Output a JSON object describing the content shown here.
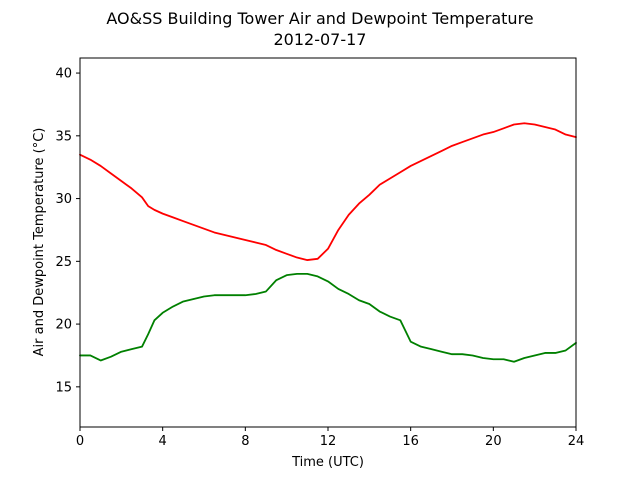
{
  "chart_data": {
    "type": "line",
    "title": "AO&SS Building Tower Air and Dewpoint Temperature",
    "subtitle": "2012-07-17",
    "xlabel": "Time (UTC)",
    "ylabel": "Air and Dewpoint Temperature (°C)",
    "xlim": [
      0,
      24
    ],
    "ylim": [
      11.8,
      41.2
    ],
    "xticks": [
      0,
      4,
      8,
      12,
      16,
      20,
      24
    ],
    "xtick_labels": [
      "0",
      "4",
      "8",
      "12",
      "16",
      "20",
      "24"
    ],
    "yticks": [
      15,
      20,
      25,
      30,
      35,
      40
    ],
    "ytick_labels": [
      "15",
      "20",
      "25",
      "30",
      "35",
      "40"
    ],
    "grid": false,
    "legend": "none",
    "series": [
      {
        "color": "#ff0000",
        "x": [
          0,
          0.5,
          1,
          1.5,
          2,
          2.5,
          3,
          3.3,
          3.6,
          4,
          4.5,
          5,
          5.5,
          6,
          6.5,
          7,
          7.5,
          8,
          8.5,
          9,
          9.5,
          10,
          10.5,
          11,
          11.5,
          12,
          12.5,
          13,
          13.5,
          14,
          14.5,
          15,
          15.5,
          16,
          16.5,
          17,
          17.5,
          18,
          18.5,
          19,
          19.5,
          20,
          20.5,
          21,
          21.5,
          22,
          22.5,
          23,
          23.5,
          24
        ],
        "y": [
          33.5,
          33.1,
          32.6,
          32.0,
          31.4,
          30.8,
          30.1,
          29.4,
          29.1,
          28.8,
          28.5,
          28.2,
          27.9,
          27.6,
          27.3,
          27.1,
          26.9,
          26.7,
          26.5,
          26.3,
          25.9,
          25.6,
          25.3,
          25.1,
          25.2,
          26.0,
          27.5,
          28.7,
          29.6,
          30.3,
          31.1,
          31.6,
          32.1,
          32.6,
          33.0,
          33.4,
          33.8,
          34.2,
          34.5,
          34.8,
          35.1,
          35.3,
          35.6,
          35.9,
          36.0,
          35.9,
          35.7,
          35.5,
          35.1,
          34.9
        ]
      },
      {
        "color": "#008000",
        "x": [
          0,
          0.5,
          1,
          1.5,
          2,
          2.5,
          3,
          3.3,
          3.6,
          4,
          4.5,
          5,
          5.5,
          6,
          6.5,
          7,
          7.5,
          8,
          8.5,
          9,
          9.5,
          10,
          10.5,
          11,
          11.5,
          12,
          12.5,
          13,
          13.5,
          14,
          14.5,
          15,
          15.5,
          16,
          16.5,
          17,
          17.5,
          18,
          18.5,
          19,
          19.5,
          20,
          20.5,
          21,
          21.5,
          22,
          22.5,
          23,
          23.5,
          24
        ],
        "y": [
          17.5,
          17.5,
          17.1,
          17.4,
          17.8,
          18.0,
          18.2,
          19.2,
          20.3,
          20.9,
          21.4,
          21.8,
          22.0,
          22.2,
          22.3,
          22.3,
          22.3,
          22.3,
          22.4,
          22.6,
          23.5,
          23.9,
          24.0,
          24.0,
          23.8,
          23.4,
          22.8,
          22.4,
          21.9,
          21.6,
          21.0,
          20.6,
          20.3,
          18.6,
          18.2,
          18.0,
          17.8,
          17.6,
          17.6,
          17.5,
          17.3,
          17.2,
          17.2,
          17.0,
          17.3,
          17.5,
          17.7,
          17.7,
          17.9,
          18.5
        ]
      }
    ]
  }
}
